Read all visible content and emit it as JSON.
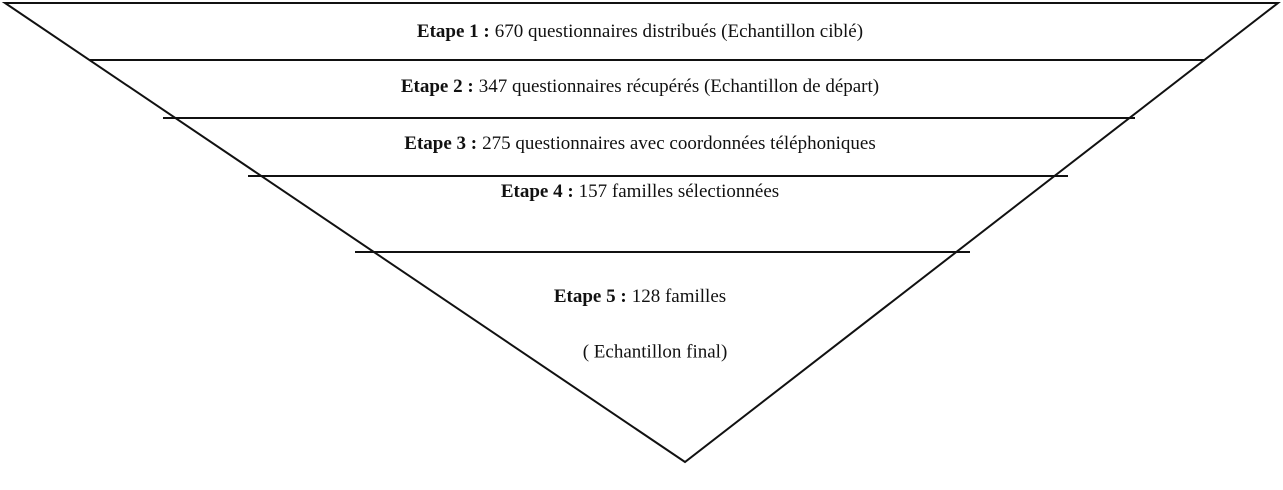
{
  "stages": [
    {
      "label": "Etape 1 :",
      "text": "670 questionnaires distribués (Echantillon ciblé)"
    },
    {
      "label": "Etape 2 :",
      "text": "347 questionnaires récupérés (Echantillon de départ)"
    },
    {
      "label": "Etape 3 :",
      "text": "275 questionnaires avec coordonnées téléphoniques"
    },
    {
      "label": "Etape 4 :",
      "text": "157 familles sélectionnées"
    },
    {
      "label": "Etape 5 :",
      "text": "128 familles",
      "note": "( Echantillon final)"
    }
  ]
}
